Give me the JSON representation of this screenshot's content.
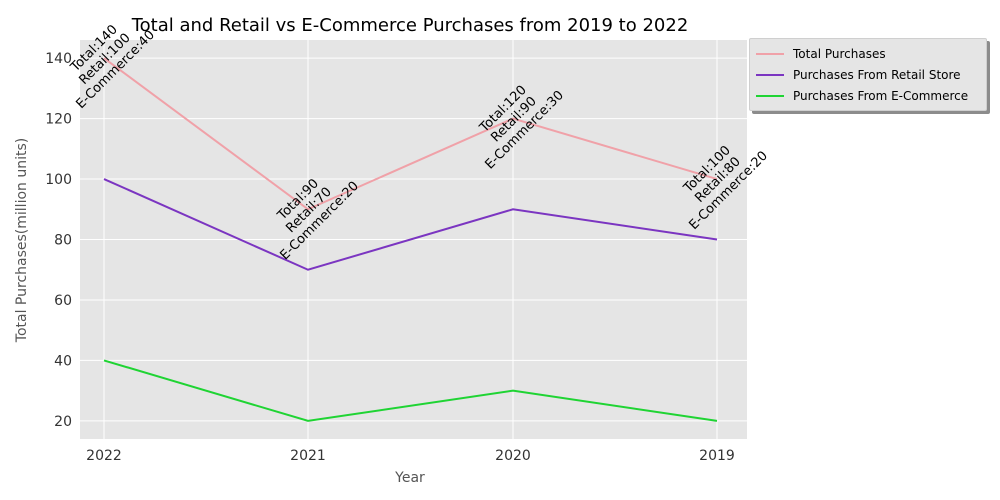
{
  "chart_data": {
    "type": "line",
    "title": "Total and Retail vs E-Commerce Purchases from 2019 to 2022",
    "xlabel": "Year",
    "ylabel": "Total Purchases(million units)",
    "categories": [
      "2022",
      "2021",
      "2020",
      "2019"
    ],
    "ylim": [
      14,
      146
    ],
    "yticks": [
      20,
      40,
      60,
      80,
      100,
      120,
      140
    ],
    "grid": true,
    "legend_position": "outside top-right",
    "series": [
      {
        "name": "Total Purchases",
        "values": [
          140,
          90,
          120,
          100
        ],
        "color": "#f0a1a8"
      },
      {
        "name": "Purchases From Retail Store",
        "values": [
          100,
          70,
          90,
          80
        ],
        "color": "#7b35c1"
      },
      {
        "name": "Purchases From E-Commerce",
        "values": [
          40,
          20,
          30,
          20
        ],
        "color": "#1fd433"
      }
    ],
    "annotations": [
      {
        "lines": [
          "Total:140",
          "Retail:100",
          "E-Commerce:40"
        ]
      },
      {
        "lines": [
          "Total:90",
          "Retail:70",
          "E-Commerce:20"
        ]
      },
      {
        "lines": [
          "Total:120",
          "Retail:90",
          "E-Commerce:30"
        ]
      },
      {
        "lines": [
          "Total:100",
          "Retail:80",
          "E-Commerce:20"
        ]
      }
    ]
  }
}
